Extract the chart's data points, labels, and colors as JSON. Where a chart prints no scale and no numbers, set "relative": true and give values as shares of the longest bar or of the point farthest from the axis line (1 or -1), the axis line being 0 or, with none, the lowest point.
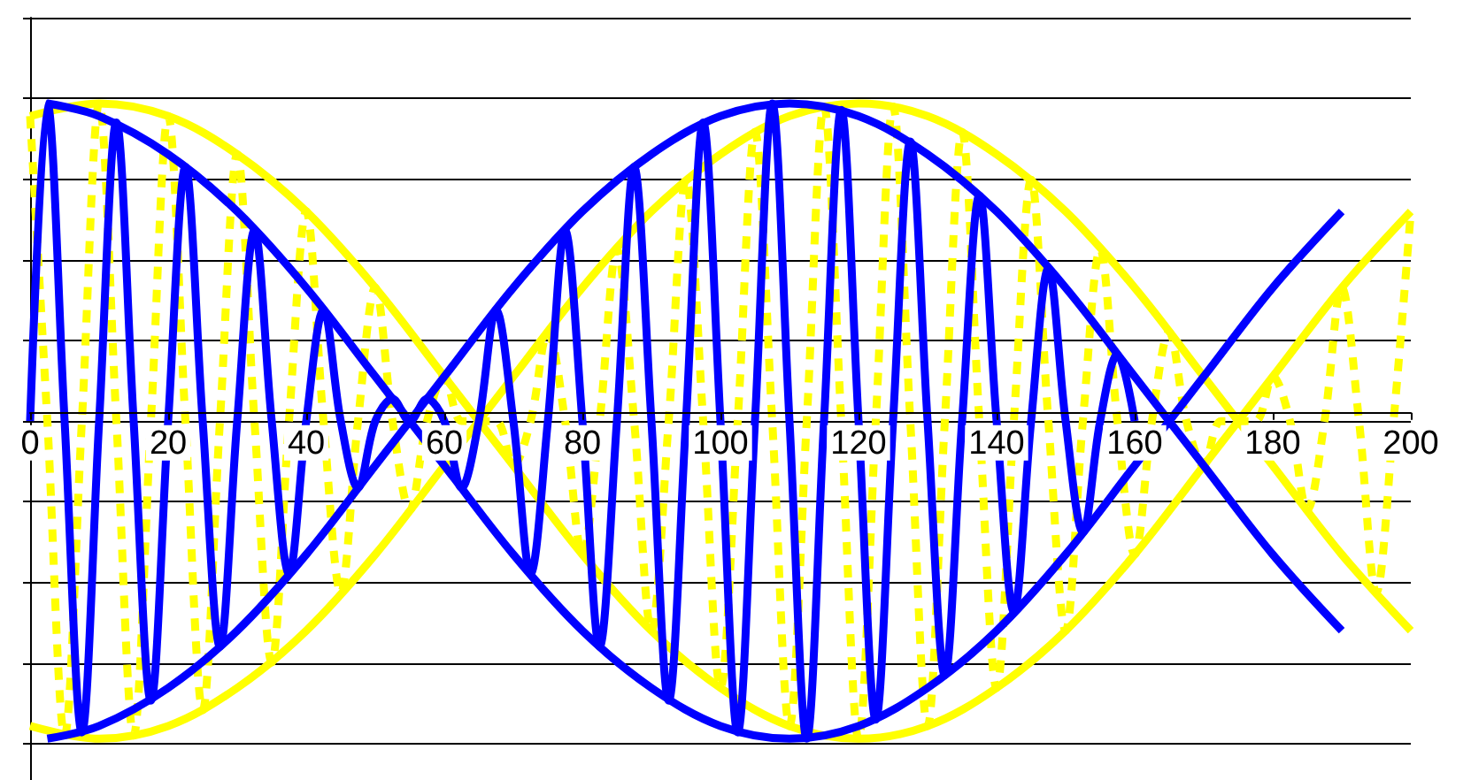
{
  "chart_data": {
    "type": "line",
    "relative": true,
    "xlim": [
      0,
      200
    ],
    "xticks": [
      0,
      20,
      40,
      60,
      80,
      100,
      120,
      140,
      160,
      180,
      200
    ],
    "grid": "y",
    "tick_labels": "x",
    "marker": "none",
    "series": [
      {
        "color": "#ffff00",
        "line_style": "dashed",
        "x": [
          0,
          2.5,
          5,
          7.5,
          10,
          12.5,
          15,
          17.5,
          20,
          22.5,
          25,
          27.5,
          30,
          32.5,
          35,
          37.5,
          40,
          42.5,
          45,
          47.5,
          50,
          52.5,
          55,
          57.5,
          60,
          62.5,
          65,
          67.5,
          70,
          72.5,
          75,
          77.5,
          80,
          82.5,
          85,
          87.5,
          90,
          92.5,
          95,
          97.5,
          100,
          102.5,
          105,
          107.5,
          110,
          112.5,
          115,
          117.5,
          120,
          122.5,
          125,
          127.5,
          130,
          132.5,
          135,
          137.5,
          140,
          142.5,
          145,
          147.5,
          150,
          152.5,
          155,
          157.5,
          160,
          162.5,
          165,
          167.5,
          170,
          172.5,
          175,
          177.5,
          180,
          182.5,
          185,
          187.5,
          190,
          192.5,
          195,
          197.5,
          200
        ],
        "values": [
          0.96,
          0,
          -0.99,
          0,
          1,
          0,
          -0.99,
          0,
          0.96,
          0,
          -0.91,
          0,
          0.84,
          0,
          -0.76,
          0,
          0.66,
          0,
          -0.54,
          0,
          0.42,
          0,
          -0.28,
          0,
          0.14,
          0,
          0,
          0,
          -0.14,
          0,
          0.28,
          0,
          -0.42,
          0,
          0.54,
          0,
          -0.66,
          0,
          0.76,
          0,
          -0.84,
          0,
          0.91,
          0,
          -0.96,
          0,
          0.99,
          0,
          -1,
          0,
          0.99,
          0,
          -0.96,
          0,
          0.91,
          0,
          -0.84,
          0,
          0.76,
          0,
          -0.66,
          0,
          0.54,
          0,
          -0.42,
          0,
          0.28,
          0,
          -0.14,
          0,
          0,
          0,
          0.14,
          0,
          -0.28,
          0,
          0.42,
          0,
          -0.54,
          0,
          0.66
        ]
      },
      {
        "color": "#ffff00",
        "line_style": "solid",
        "x": [
          0,
          10,
          20,
          30,
          40,
          50,
          60,
          70,
          80,
          90,
          100,
          110,
          120,
          130,
          140,
          150,
          160,
          170,
          180,
          190,
          200
        ],
        "values": [
          0.96,
          1,
          0.96,
          0.84,
          0.66,
          0.42,
          0.14,
          -0.14,
          -0.42,
          -0.66,
          -0.84,
          -0.96,
          -1,
          -0.96,
          -0.84,
          -0.66,
          -0.42,
          -0.14,
          0.14,
          0.42,
          0.66
        ]
      },
      {
        "color": "#ffff00",
        "line_style": "solid",
        "x": [
          0,
          10,
          20,
          30,
          40,
          50,
          60,
          70,
          80,
          90,
          100,
          110,
          120,
          130,
          140,
          150,
          160,
          170,
          180,
          190,
          200
        ],
        "values": [
          -0.96,
          -1,
          -0.96,
          -0.84,
          -0.66,
          -0.42,
          -0.14,
          0.14,
          0.42,
          0.66,
          0.84,
          0.96,
          1,
          0.96,
          0.84,
          0.66,
          0.42,
          0.14,
          -0.14,
          -0.42,
          -0.66
        ]
      },
      {
        "color": "#0000ff",
        "line_style": "solid",
        "x": [
          0,
          2.5,
          5,
          7.5,
          10,
          12.5,
          15,
          17.5,
          20,
          22.5,
          25,
          27.5,
          30,
          32.5,
          35,
          37.5,
          40,
          42.5,
          45,
          47.5,
          50,
          52.5,
          55,
          57.5,
          60,
          62.5,
          65,
          67.5,
          70,
          72.5,
          75,
          77.5,
          80,
          82.5,
          85,
          87.5,
          90,
          92.5,
          95,
          97.5,
          100,
          102.5,
          105,
          107.5,
          110,
          112.5,
          115,
          117.5,
          120,
          122.5,
          125,
          127.5,
          130,
          132.5,
          135,
          137.5,
          140,
          142.5,
          145,
          147.5,
          150,
          152.5,
          155,
          157.5,
          160
        ],
        "values": [
          0,
          1,
          0,
          -0.98,
          0,
          0.94,
          0,
          -0.88,
          0,
          0.8,
          0,
          -0.71,
          0,
          0.6,
          0,
          -0.48,
          0,
          0.35,
          0,
          -0.21,
          0,
          0.07,
          0,
          0.07,
          0,
          -0.21,
          0,
          0.35,
          0,
          -0.48,
          0,
          0.6,
          0,
          -0.71,
          0,
          0.8,
          0,
          -0.88,
          0,
          0.94,
          0,
          -0.98,
          0,
          1,
          0,
          -1,
          0,
          0.98,
          0,
          -0.94,
          0,
          0.88,
          0,
          -0.8,
          0,
          0.71,
          0,
          -0.6,
          0,
          0.48,
          0,
          -0.35,
          0,
          0.21,
          0
        ]
      },
      {
        "color": "#0000ff",
        "line_style": "solid",
        "x": [
          2.5,
          10,
          20,
          30,
          40,
          50,
          60,
          70,
          80,
          90,
          100,
          110,
          120,
          130,
          140,
          150,
          160,
          170,
          180,
          190
        ],
        "values": [
          1,
          0.96,
          0.84,
          0.66,
          0.42,
          0.14,
          -0.14,
          -0.42,
          -0.66,
          -0.84,
          -0.96,
          -1,
          -0.96,
          -0.84,
          -0.66,
          -0.42,
          -0.14,
          0.14,
          0.42,
          0.66
        ]
      },
      {
        "color": "#0000ff",
        "line_style": "solid",
        "x": [
          2.5,
          10,
          20,
          30,
          40,
          50,
          60,
          70,
          80,
          90,
          100,
          110,
          120,
          130,
          140,
          150,
          160,
          170,
          180,
          190
        ],
        "values": [
          -1,
          -0.96,
          -0.84,
          -0.66,
          -0.42,
          -0.14,
          0.14,
          0.42,
          0.66,
          0.84,
          0.96,
          1,
          0.96,
          0.84,
          0.66,
          0.42,
          0.14,
          -0.14,
          -0.42,
          -0.66
        ]
      }
    ]
  }
}
